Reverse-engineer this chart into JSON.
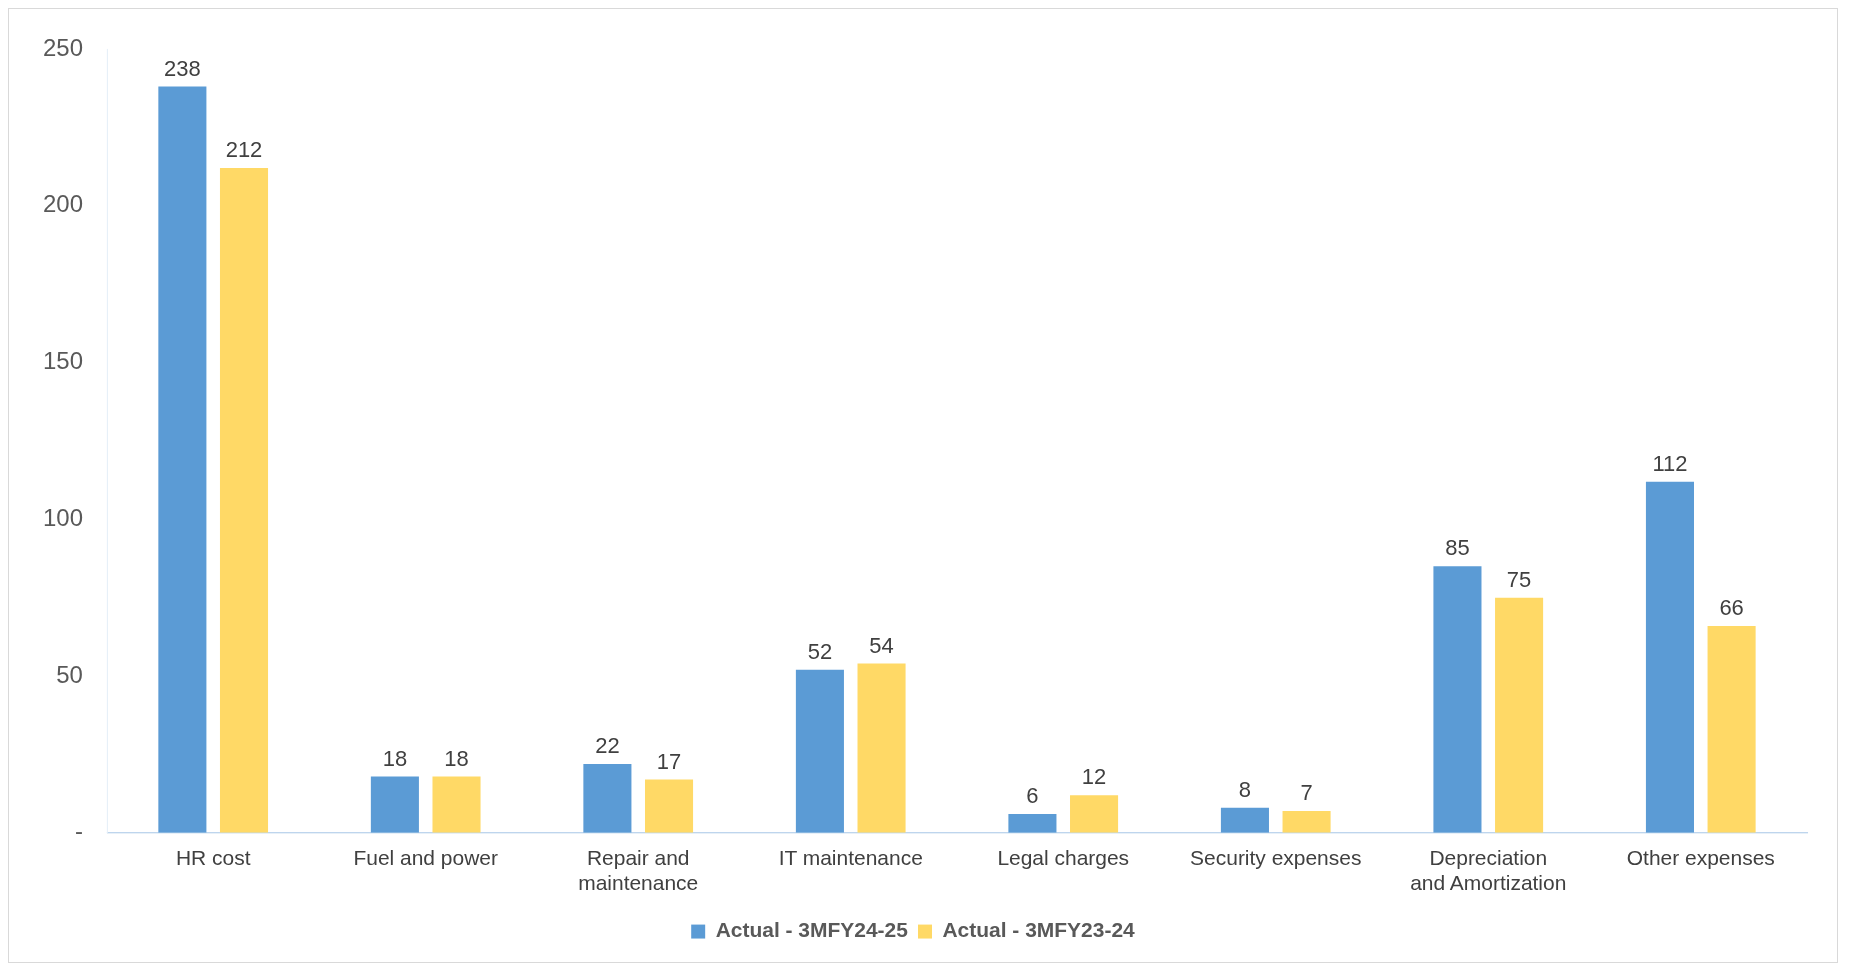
{
  "chart_data": {
    "type": "bar",
    "categories": [
      "HR cost",
      "Fuel and power",
      "Repair and maintenance",
      "IT maintenance",
      "Legal charges",
      "Security expenses",
      "Depreciation and Amortization",
      "Other expenses"
    ],
    "series": [
      {
        "name": "Actual - 3MFY24-25",
        "color": "#5b9bd5",
        "values": [
          238,
          18,
          22,
          52,
          6,
          8,
          85,
          112
        ]
      },
      {
        "name": "Actual - 3MFY23-24",
        "color": "#ffd966",
        "values": [
          212,
          18,
          17,
          54,
          12,
          7,
          75,
          66
        ]
      }
    ],
    "ylim": [
      0,
      250
    ],
    "yticks": [
      {
        "value": 0,
        "label": "-"
      },
      50,
      100,
      150,
      200,
      250
    ],
    "grid": false,
    "legend": "bottom",
    "data_labels": true
  }
}
